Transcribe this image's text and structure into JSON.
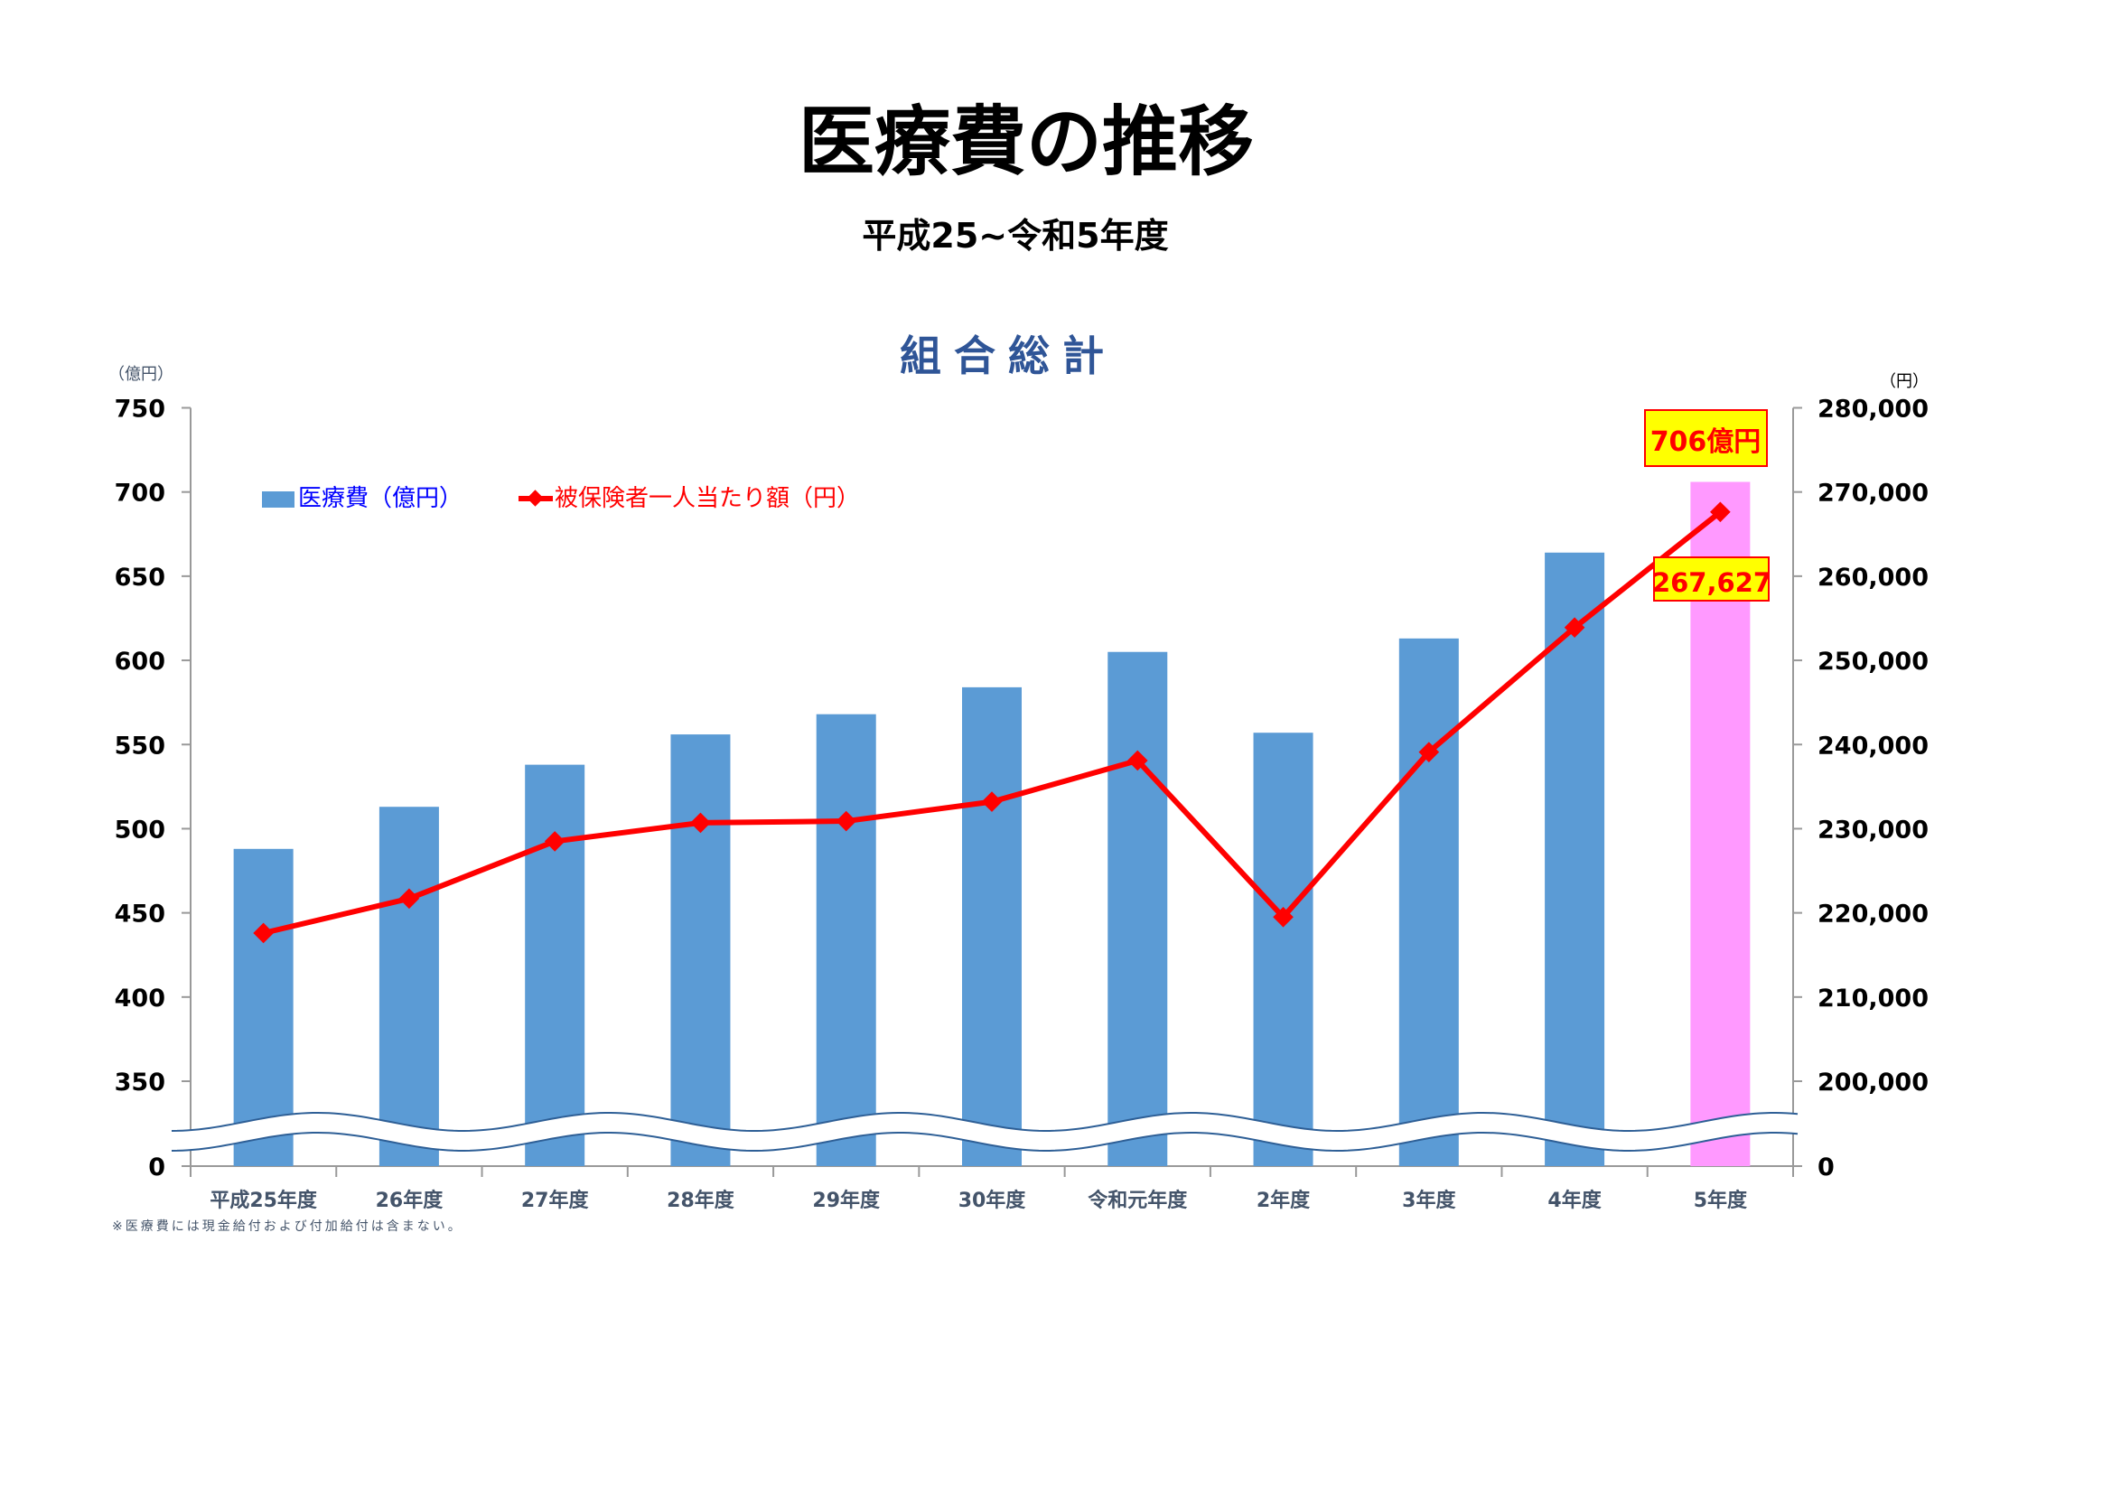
{
  "title": "医療費の推移",
  "subtitle": "平成25~令和5年度",
  "chart_data": {
    "type": "bar+line",
    "title": "組合総計",
    "categories": [
      "平成25年度",
      "26年度",
      "27年度",
      "28年度",
      "29年度",
      "30年度",
      "令和元年度",
      "2年度",
      "3年度",
      "4年度",
      "5年度"
    ],
    "series": [
      {
        "name": "医療費（億円）",
        "type": "bar",
        "axis": "left",
        "color": "#5b9bd5",
        "highlight_color": "#ff99ff",
        "values": [
          488,
          513,
          538,
          556,
          568,
          584,
          605,
          557,
          613,
          664,
          706
        ]
      },
      {
        "name": "被保険者一人当たり額（円）",
        "type": "line",
        "axis": "right",
        "color": "#ff0000",
        "values": [
          217600,
          221700,
          228500,
          230700,
          230900,
          233200,
          238100,
          219500,
          239100,
          253900,
          267627
        ]
      }
    ],
    "left_axis": {
      "unit_label": "（億円）",
      "ticks": [
        "0",
        "350",
        "400",
        "450",
        "500",
        "550",
        "600",
        "650",
        "700",
        "750"
      ],
      "range": [
        350,
        750
      ],
      "break": true
    },
    "right_axis": {
      "unit_label": "（円）",
      "ticks": [
        "0",
        "200,000",
        "210,000",
        "220,000",
        "230,000",
        "240,000",
        "250,000",
        "260,000",
        "270,000",
        "280,000"
      ],
      "range": [
        200000,
        280000
      ],
      "break": true
    },
    "annotations": {
      "bar_label": "706億円",
      "line_label": "267,627"
    },
    "legend_position": "top-left",
    "footnote": "※医療費には現金給付および付加給付は含まない。"
  }
}
